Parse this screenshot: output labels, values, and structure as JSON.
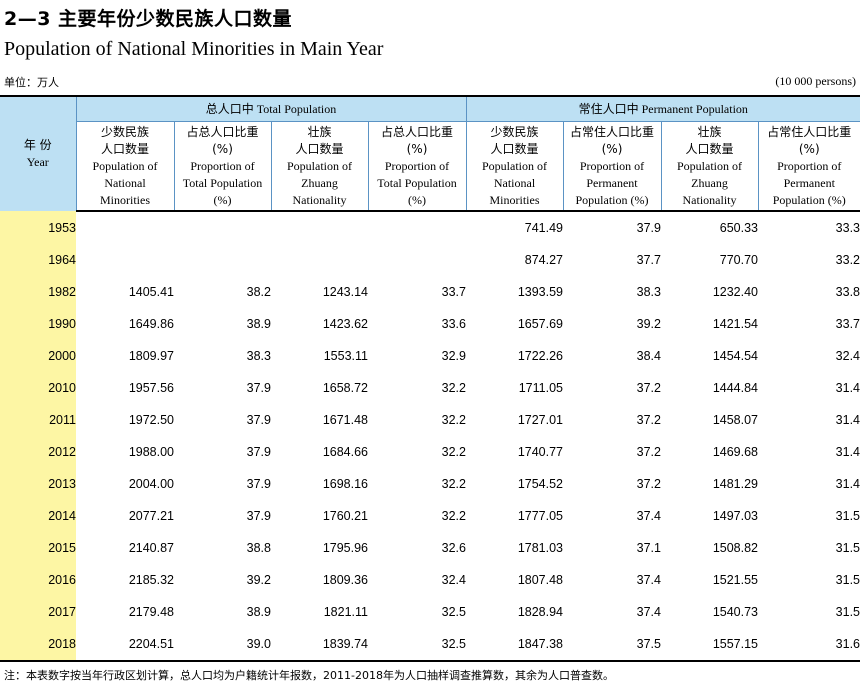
{
  "title_cn": "2—3  主要年份少数民族人口数量",
  "title_en": "Population of National Minorities in Main Year",
  "unit_cn": "单位：万人",
  "unit_en": "(10 000 persons)",
  "header": {
    "year_cn": "年  份",
    "year_en": "Year",
    "group_total": "总人口中 Total Population",
    "group_permanent": "常住人口中 Permanent Population",
    "col1_cn": "少数民族\n人口数量",
    "col1_en": "Population of\nNational\nMinorities",
    "col2_cn": "占总人口比重\n(%)",
    "col2_en": "Proportion of\nTotal Population\n(%)",
    "col3_cn": "壮族\n人口数量",
    "col3_en": "Population of\nZhuang\nNationality",
    "col4_cn": "占总人口比重\n(%)",
    "col4_en": "Proportion of\nTotal Population\n(%)",
    "col5_cn": "少数民族\n人口数量",
    "col5_en": "Population of\nNational\nMinorities",
    "col6_cn": "占常住人口比重\n(%)",
    "col6_en": "Proportion of\nPermanent\nPopulation (%)",
    "col7_cn": "壮族\n人口数量",
    "col7_en": "Population of\nZhuang\nNationality",
    "col8_cn": "占常住人口比重\n(%)",
    "col8_en": "Proportion of\nPermanent\nPopulation (%)"
  },
  "rows": [
    {
      "year": "1953",
      "v": [
        "",
        "",
        "",
        "",
        "741.49",
        "37.9",
        "650.33",
        "33.3"
      ]
    },
    {
      "year": "1964",
      "v": [
        "",
        "",
        "",
        "",
        "874.27",
        "37.7",
        "770.70",
        "33.2"
      ]
    },
    {
      "year": "1982",
      "v": [
        "1405.41",
        "38.2",
        "1243.14",
        "33.7",
        "1393.59",
        "38.3",
        "1232.40",
        "33.8"
      ]
    },
    {
      "year": "1990",
      "v": [
        "1649.86",
        "38.9",
        "1423.62",
        "33.6",
        "1657.69",
        "39.2",
        "1421.54",
        "33.7"
      ]
    },
    {
      "year": "2000",
      "v": [
        "1809.97",
        "38.3",
        "1553.11",
        "32.9",
        "1722.26",
        "38.4",
        "1454.54",
        "32.4"
      ]
    },
    {
      "year": "2010",
      "v": [
        "1957.56",
        "37.9",
        "1658.72",
        "32.2",
        "1711.05",
        "37.2",
        "1444.84",
        "31.4"
      ]
    },
    {
      "year": "2011",
      "v": [
        "1972.50",
        "37.9",
        "1671.48",
        "32.2",
        "1727.01",
        "37.2",
        "1458.07",
        "31.4"
      ]
    },
    {
      "year": "2012",
      "v": [
        "1988.00",
        "37.9",
        "1684.66",
        "32.2",
        "1740.77",
        "37.2",
        "1469.68",
        "31.4"
      ]
    },
    {
      "year": "2013",
      "v": [
        "2004.00",
        "37.9",
        "1698.16",
        "32.2",
        "1754.52",
        "37.2",
        "1481.29",
        "31.4"
      ]
    },
    {
      "year": "2014",
      "v": [
        "2077.21",
        "37.9",
        "1760.21",
        "32.2",
        "1777.05",
        "37.4",
        "1497.03",
        "31.5"
      ]
    },
    {
      "year": "2015",
      "v": [
        "2140.87",
        "38.8",
        "1795.96",
        "32.6",
        "1781.03",
        "37.1",
        "1508.82",
        "31.5"
      ]
    },
    {
      "year": "2016",
      "v": [
        "2185.32",
        "39.2",
        "1809.36",
        "32.4",
        "1807.48",
        "37.4",
        "1521.55",
        "31.5"
      ]
    },
    {
      "year": "2017",
      "v": [
        "2179.48",
        "38.9",
        "1821.11",
        "32.5",
        "1828.94",
        "37.4",
        "1540.73",
        "31.5"
      ]
    },
    {
      "year": "2018",
      "v": [
        "2204.51",
        "39.0",
        "1839.74",
        "32.5",
        "1847.38",
        "37.5",
        "1557.15",
        "31.6"
      ]
    }
  ],
  "note": "注：本表数字按当年行政区划计算，总人口均为户籍统计年报数，2011-2018年为人口抽样调查推算数，其余为人口普查数。"
}
